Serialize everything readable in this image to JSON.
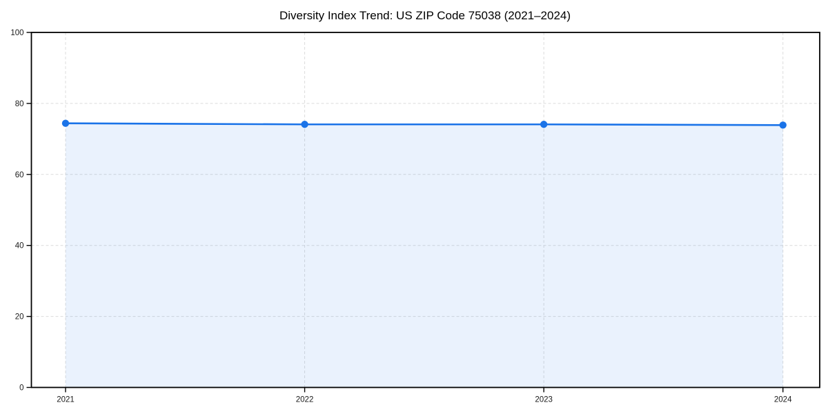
{
  "page": {
    "background": "#ffffff"
  },
  "chart_data": {
    "type": "area",
    "title": "Diversity Index Trend: US ZIP Code 75038 (2021–2024)",
    "x": [
      2021,
      2022,
      2023,
      2024
    ],
    "series": [
      {
        "name": "Diversity Index",
        "values": [
          74.4,
          74.1,
          74.1,
          73.9
        ]
      }
    ],
    "xlabel": "",
    "ylabel": "",
    "xlim": [
      2021,
      2024
    ],
    "ylim": [
      0,
      100
    ],
    "yticks": [
      0,
      20,
      40,
      60,
      80,
      100
    ],
    "xticks": [
      "2021",
      "2022",
      "2023",
      "2024"
    ],
    "grid": "dashed, horizontal and vertical at ticks",
    "legend": "none",
    "marker": "circle",
    "colors": {
      "line": "#1a73e8",
      "marker": "#1a73e8",
      "fill": "rgba(26,115,232,0.09)",
      "grid": "#dcdcdc",
      "frame": "#000000",
      "tick_label": "#1a1a1a",
      "title": "#000000"
    }
  }
}
